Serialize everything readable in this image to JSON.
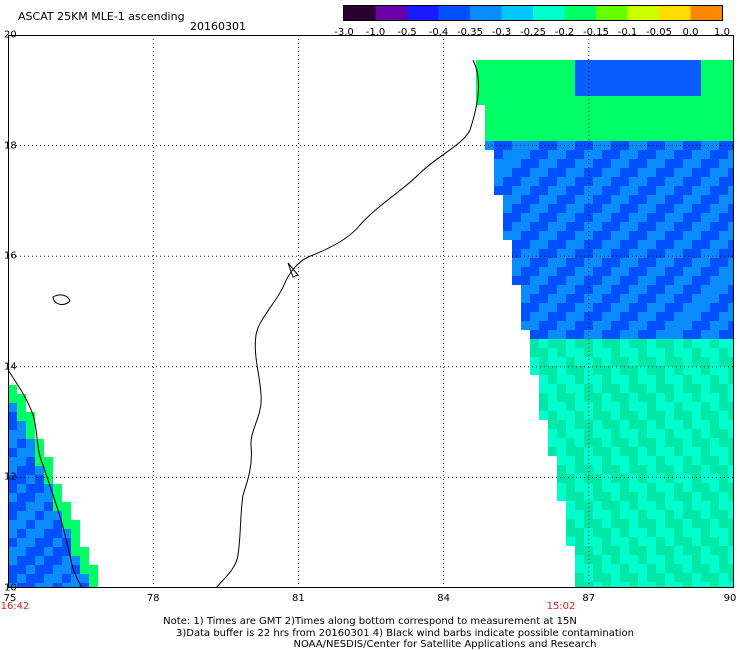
{
  "header": {
    "title": "ASCAT 25KM MLE-1 ascending",
    "date": "20160301"
  },
  "colorbar": {
    "labels": [
      "-3.0",
      "-1.0",
      "-0.5",
      "-0.4",
      "-0.35",
      "-0.3",
      "-0.25",
      "-0.2",
      "-0.15",
      "-0.1",
      "-0.05",
      "0.0",
      "1.0"
    ],
    "colors": [
      "#2a0030",
      "#6a00a8",
      "#1a1aff",
      "#0050ff",
      "#0a8cff",
      "#00c8ff",
      "#00ffcc",
      "#00ff66",
      "#66ff00",
      "#ccff00",
      "#ffdd00",
      "#ff8800",
      "#ff2200"
    ]
  },
  "map": {
    "lat_labels": [
      "20",
      "18",
      "16",
      "14",
      "12",
      "10"
    ],
    "lon_labels": [
      "75",
      "78",
      "81",
      "84",
      "87",
      "90"
    ],
    "times": {
      "left": "16:42",
      "right": "15:02"
    },
    "lat_range": [
      10,
      20
    ],
    "lon_range": [
      75,
      90
    ]
  },
  "footer": {
    "line1": "Note: 1) Times are GMT 2)Times along bottom correspond to measurement at 15N",
    "line2": "3)Data buffer is 22 hrs from 20160301 4) Black wind barbs indicate possible contamination",
    "line3": "NOAA/NESDIS/Center for Satellite Applications and Research"
  }
}
